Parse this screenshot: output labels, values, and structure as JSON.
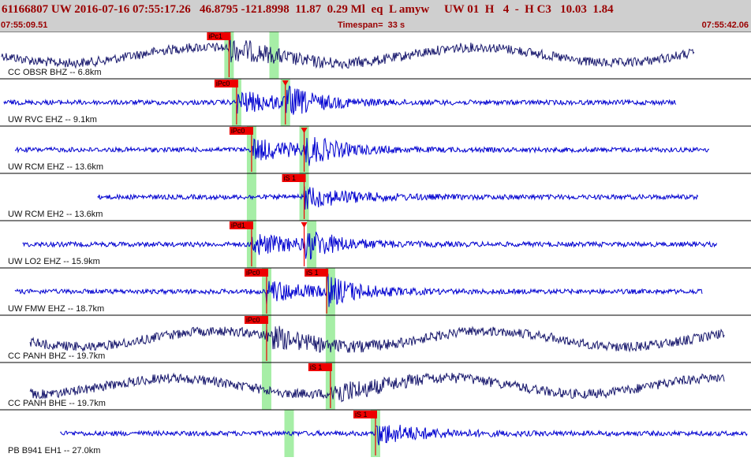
{
  "header": {
    "title": "61166807 UW 2016-07-16 07:55:17.26   46.8795 -121.8998  11.87  0.29 Ml  eq  L amyw     UW 01  H   4  -  H C3   10.03  1.84",
    "start_time": "07:55:09.51",
    "timespan": "Timespan=  33 s",
    "end_time": "07:55:42.06"
  },
  "colors": {
    "header_bg": "#cfcfcf",
    "header_text": "#9a0000",
    "trace_blue": "#0000d0",
    "trace_navy": "#1a1a6e",
    "pick_red": "#ee0000",
    "pick_window_green": "#a6eea6"
  },
  "traces": [
    {
      "label": "CC OBSR BHZ -- 6.8km",
      "color": "navy",
      "start": 0.002,
      "end": 0.925,
      "picks": [
        {
          "text": "iPc1",
          "t": 0.305
        }
      ],
      "green": [
        0.305,
        0.365
      ]
    },
    {
      "label": "UW RVC EHZ -- 9.1km",
      "color": "blue",
      "start": 0.005,
      "end": 0.9,
      "picks": [
        {
          "text": "iPc0",
          "t": 0.315
        },
        {
          "text": "",
          "t": 0.38
        }
      ],
      "green": [
        0.315,
        0.38
      ]
    },
    {
      "label": "UW RCM EHZ -- 13.6km",
      "color": "blue",
      "start": 0.02,
      "end": 0.945,
      "picks": [
        {
          "text": "iPc0",
          "t": 0.335
        },
        {
          "text": "",
          "t": 0.405
        }
      ],
      "green": [
        0.335,
        0.405
      ]
    },
    {
      "label": "UW RCM EH2 -- 13.6km",
      "color": "blue",
      "start": 0.13,
      "end": 0.93,
      "picks": [
        {
          "text": "iS 1",
          "t": 0.405
        }
      ],
      "green": [
        0.335,
        0.405
      ]
    },
    {
      "label": "UW LO2 EHZ -- 15.9km",
      "color": "blue",
      "start": 0.03,
      "end": 0.955,
      "picks": [
        {
          "text": "iPd1",
          "t": 0.335
        },
        {
          "text": "",
          "t": 0.405
        }
      ],
      "green": [
        0.335,
        0.415
      ]
    },
    {
      "label": "UW FMW EHZ -- 18.7km",
      "color": "blue",
      "start": 0.02,
      "end": 0.935,
      "picks": [
        {
          "text": "iPc0",
          "t": 0.355
        },
        {
          "text": "iS 1",
          "t": 0.435
        }
      ],
      "green": [
        0.355,
        0.44
      ]
    },
    {
      "label": "CC PANH BHZ -- 19.7km",
      "color": "navy",
      "start": 0.04,
      "end": 0.965,
      "picks": [
        {
          "text": "iPc0",
          "t": 0.355
        }
      ],
      "green": [
        0.355,
        0.44
      ]
    },
    {
      "label": "CC PANH BHE -- 19.7km",
      "color": "navy",
      "start": 0.04,
      "end": 0.965,
      "picks": [
        {
          "text": "iS 1",
          "t": 0.44
        }
      ],
      "green": [
        0.355,
        0.44
      ]
    },
    {
      "label": "PB B941 EH1 -- 27.0km",
      "color": "blue",
      "start": 0.08,
      "end": 0.995,
      "picks": [
        {
          "text": "iS 1",
          "t": 0.5
        }
      ],
      "green": [
        0.385,
        0.5
      ]
    }
  ]
}
